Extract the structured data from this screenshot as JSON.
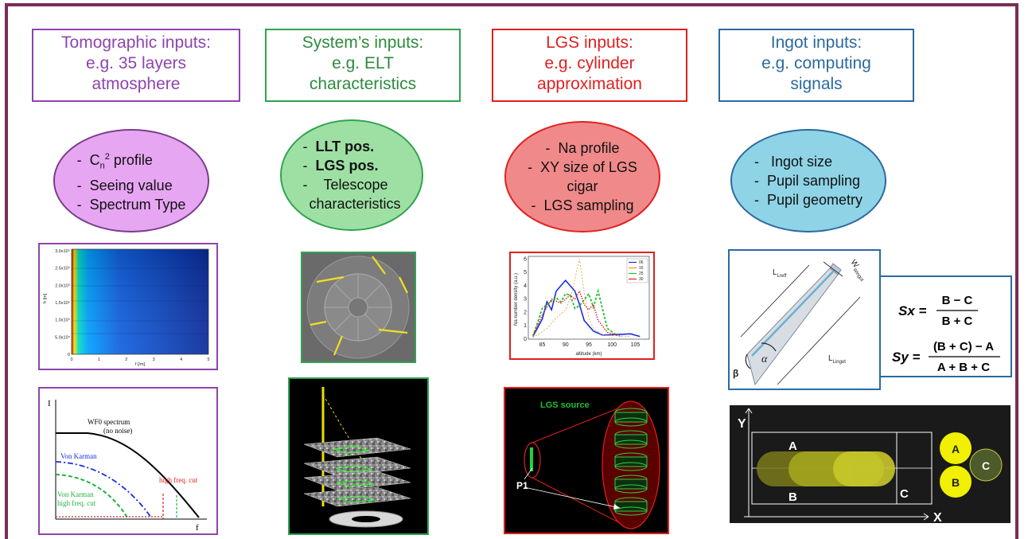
{
  "colors": {
    "frame": "#7a2d57",
    "purple": "#8e44ad",
    "green": "#2ea44f",
    "red": "#e02020",
    "blue": "#2c6aa0"
  },
  "columns": [
    {
      "title_lines": [
        "Tomographic inputs:",
        "e.g. 35 layers",
        "atmosphere"
      ],
      "bullets": [
        "Cn2 profile",
        "Seeing value",
        "Spectrum Type"
      ]
    },
    {
      "title_lines": [
        "System’s inputs:",
        "e.g. ELT",
        "characteristics"
      ],
      "bullets": [
        "LLT pos.",
        "LGS pos.",
        "Telescope",
        "characteristics"
      ]
    },
    {
      "title_lines": [
        "LGS inputs:",
        "e.g. cylinder",
        "approximation"
      ],
      "bullets": [
        "Na profile",
        "XY size of LGS",
        "cigar",
        "LGS sampling"
      ]
    },
    {
      "title_lines": [
        "Ingot inputs:",
        "e.g. computing",
        "signals"
      ],
      "bullets": [
        "Ingot size",
        "Pupil sampling",
        "Pupil geometry"
      ]
    }
  ],
  "cn2_plot": {
    "yticks": [
      "3.0x10⁵",
      "2.5x10⁵",
      "2.0x10⁵",
      "1.5x10⁵",
      "1.0x10⁵",
      "5.0x10⁴",
      "0"
    ],
    "xticks": [
      "0",
      "1",
      "2",
      "3",
      "4",
      "5"
    ],
    "ylabel": "h [m]",
    "xlabel": "f [/m]"
  },
  "spectrum_plot": {
    "yaxis": "I",
    "xaxis": "f",
    "wf0": "WF0 spectrum",
    "wf0_sub": "(no noise)",
    "vk": "Von Karman",
    "cut": "high freq. cut",
    "vk_cut1": "Von Karman",
    "vk_cut2": "high freq. cut"
  },
  "na_chart": {
    "ylabel": "Na number density (a.u.)",
    "xlabel": "altitude (km)",
    "xticks": [
      "85",
      "90",
      "95",
      "100",
      "105"
    ],
    "yticks": [
      "0",
      "1",
      "2",
      "3",
      "4",
      "5",
      "6"
    ],
    "legend": [
      "06",
      "16",
      "25",
      "30"
    ]
  },
  "lgs_source": {
    "label": "LGS source",
    "p1": "P1"
  },
  "ingot": {
    "lreff": "Lreff",
    "wingot": "Wingot",
    "lingot": "Lingot",
    "alpha": "α",
    "beta": "β"
  },
  "formulas": {
    "sx_lhs": "Sx =",
    "sx_num": "B − C",
    "sx_den": "B + C",
    "sy_lhs": "Sy =",
    "sy_num": "(B + C) − A",
    "sy_den": "A + B + C"
  },
  "pupil_diagram": {
    "y": "Y",
    "x": "X",
    "a": "A",
    "b": "B",
    "c": "C",
    "ca": "A",
    "cb": "B",
    "cc": "C"
  }
}
